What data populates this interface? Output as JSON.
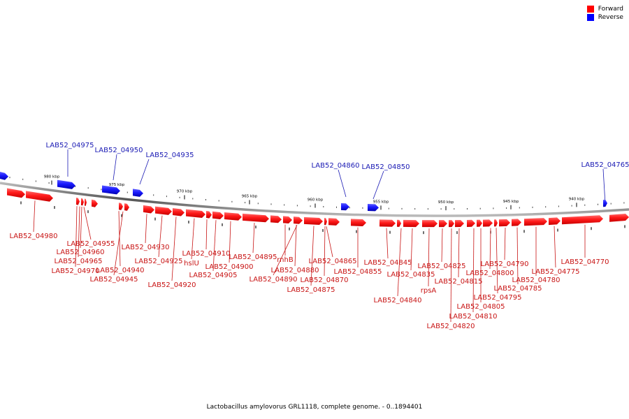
{
  "legend": {
    "forward_label": "Forward",
    "reverse_label": "Reverse",
    "forward_color": "#ff0000",
    "reverse_color": "#0000ff"
  },
  "caption": "Lactobacillus amylovorus GRL1118, complete genome. - 0..1894401",
  "ticks": [
    "980 kbp",
    "975 kbp",
    "970 kbp",
    "965 kbp",
    "960 kbp",
    "955 kbp",
    "950 kbp",
    "945 kbp",
    "940 kbp"
  ],
  "reverse_genes": [
    "LAB52_04975",
    "LAB52_04950",
    "LAB52_04935",
    "LAB52_04860",
    "LAB52_04850",
    "LAB52_04765"
  ],
  "forward_genes": [
    "LAB52_04980",
    "LAB52_04955",
    "LAB52_04960",
    "LAB52_04965",
    "LAB52_04970",
    "LAB52_04940",
    "LAB52_04945",
    "LAB52_04930",
    "LAB52_04925",
    "LAB52_04920",
    "hslU",
    "LAB52_04910",
    "LAB52_04905",
    "LAB52_04900",
    "LAB52_04895",
    "rnhB",
    "LAB52_04890",
    "LAB52_04880",
    "LAB52_04875",
    "LAB52_04870",
    "LAB52_04865",
    "LAB52_04855",
    "LAB52_04845",
    "LAB52_04840",
    "LAB52_04835",
    "rpsA",
    "LAB52_04825",
    "LAB52_04820",
    "LAB52_04815",
    "LAB52_04810",
    "LAB52_04805",
    "LAB52_04800",
    "LAB52_04795",
    "LAB52_04790",
    "LAB52_04785",
    "LAB52_04780",
    "LAB52_04775",
    "LAB52_04770"
  ]
}
